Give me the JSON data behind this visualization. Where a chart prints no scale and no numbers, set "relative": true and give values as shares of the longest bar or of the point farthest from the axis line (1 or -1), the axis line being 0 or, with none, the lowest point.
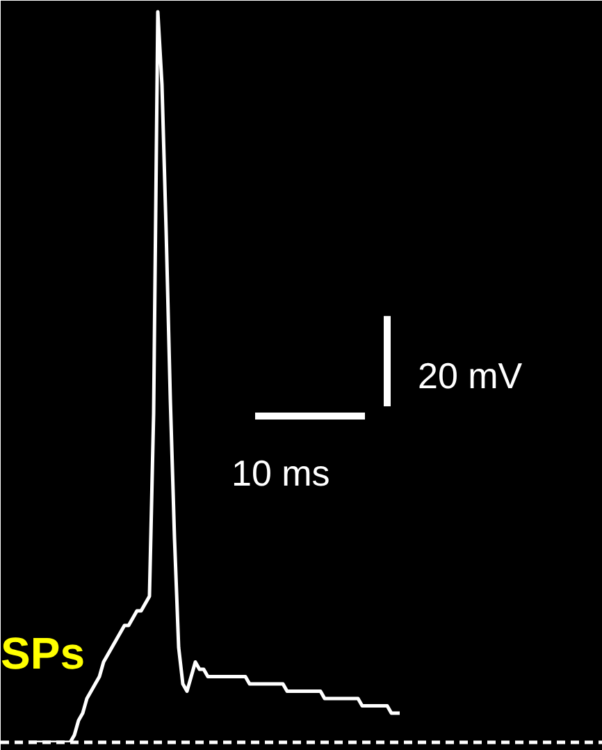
{
  "chart_data": {
    "type": "line",
    "relative": true,
    "color": "#ffffff",
    "line_style": "solid",
    "categories": [
      null,
      null,
      null,
      null,
      null,
      null,
      null,
      null,
      null,
      null,
      null,
      null,
      null,
      null,
      null,
      null,
      null,
      null,
      null,
      null,
      null,
      null,
      null,
      null,
      null,
      null,
      null,
      null,
      null,
      null,
      null,
      null,
      null,
      null,
      null,
      null,
      null,
      null,
      null,
      null,
      null,
      null,
      null,
      null,
      null,
      null,
      null,
      null,
      null,
      null,
      null,
      null,
      null,
      null,
      null,
      null,
      null,
      null,
      null,
      null,
      null,
      null,
      null,
      null,
      null,
      null,
      null,
      null,
      null,
      null,
      null,
      null,
      null,
      null,
      null,
      null,
      null,
      null,
      null,
      null,
      null,
      null,
      null,
      null,
      null,
      null,
      null,
      null,
      null,
      null
    ],
    "values": [
      0,
      0,
      0,
      0,
      0,
      0,
      0,
      0,
      0,
      0,
      0,
      0.01,
      0.03,
      0.04,
      0.06,
      0.07,
      0.08,
      0.09,
      0.11,
      0.12,
      0.13,
      0.14,
      0.15,
      0.16,
      0.16,
      0.17,
      0.18,
      0.18,
      0.19,
      0.2,
      0.45,
      1.0,
      0.9,
      0.7,
      0.47,
      0.28,
      0.13,
      0.08,
      0.07,
      0.09,
      0.11,
      0.1,
      0.1,
      0.09,
      0.09,
      0.09,
      0.09,
      0.09,
      0.09,
      0.09,
      0.09,
      0.09,
      0.09,
      0.08,
      0.08,
      0.08,
      0.08,
      0.08,
      0.08,
      0.08,
      0.08,
      0.08,
      0.07,
      0.07,
      0.07,
      0.07,
      0.07,
      0.07,
      0.07,
      0.07,
      0.07,
      0.06,
      0.06,
      0.06,
      0.06,
      0.06,
      0.06,
      0.06,
      0.06,
      0.06,
      0.05,
      0.05,
      0.05,
      0.05,
      0.05,
      0.05,
      0.05,
      0.04,
      0.04,
      0.04
    ],
    "annotations": [
      "SPs",
      "20 mV",
      "10 ms"
    ]
  }
}
